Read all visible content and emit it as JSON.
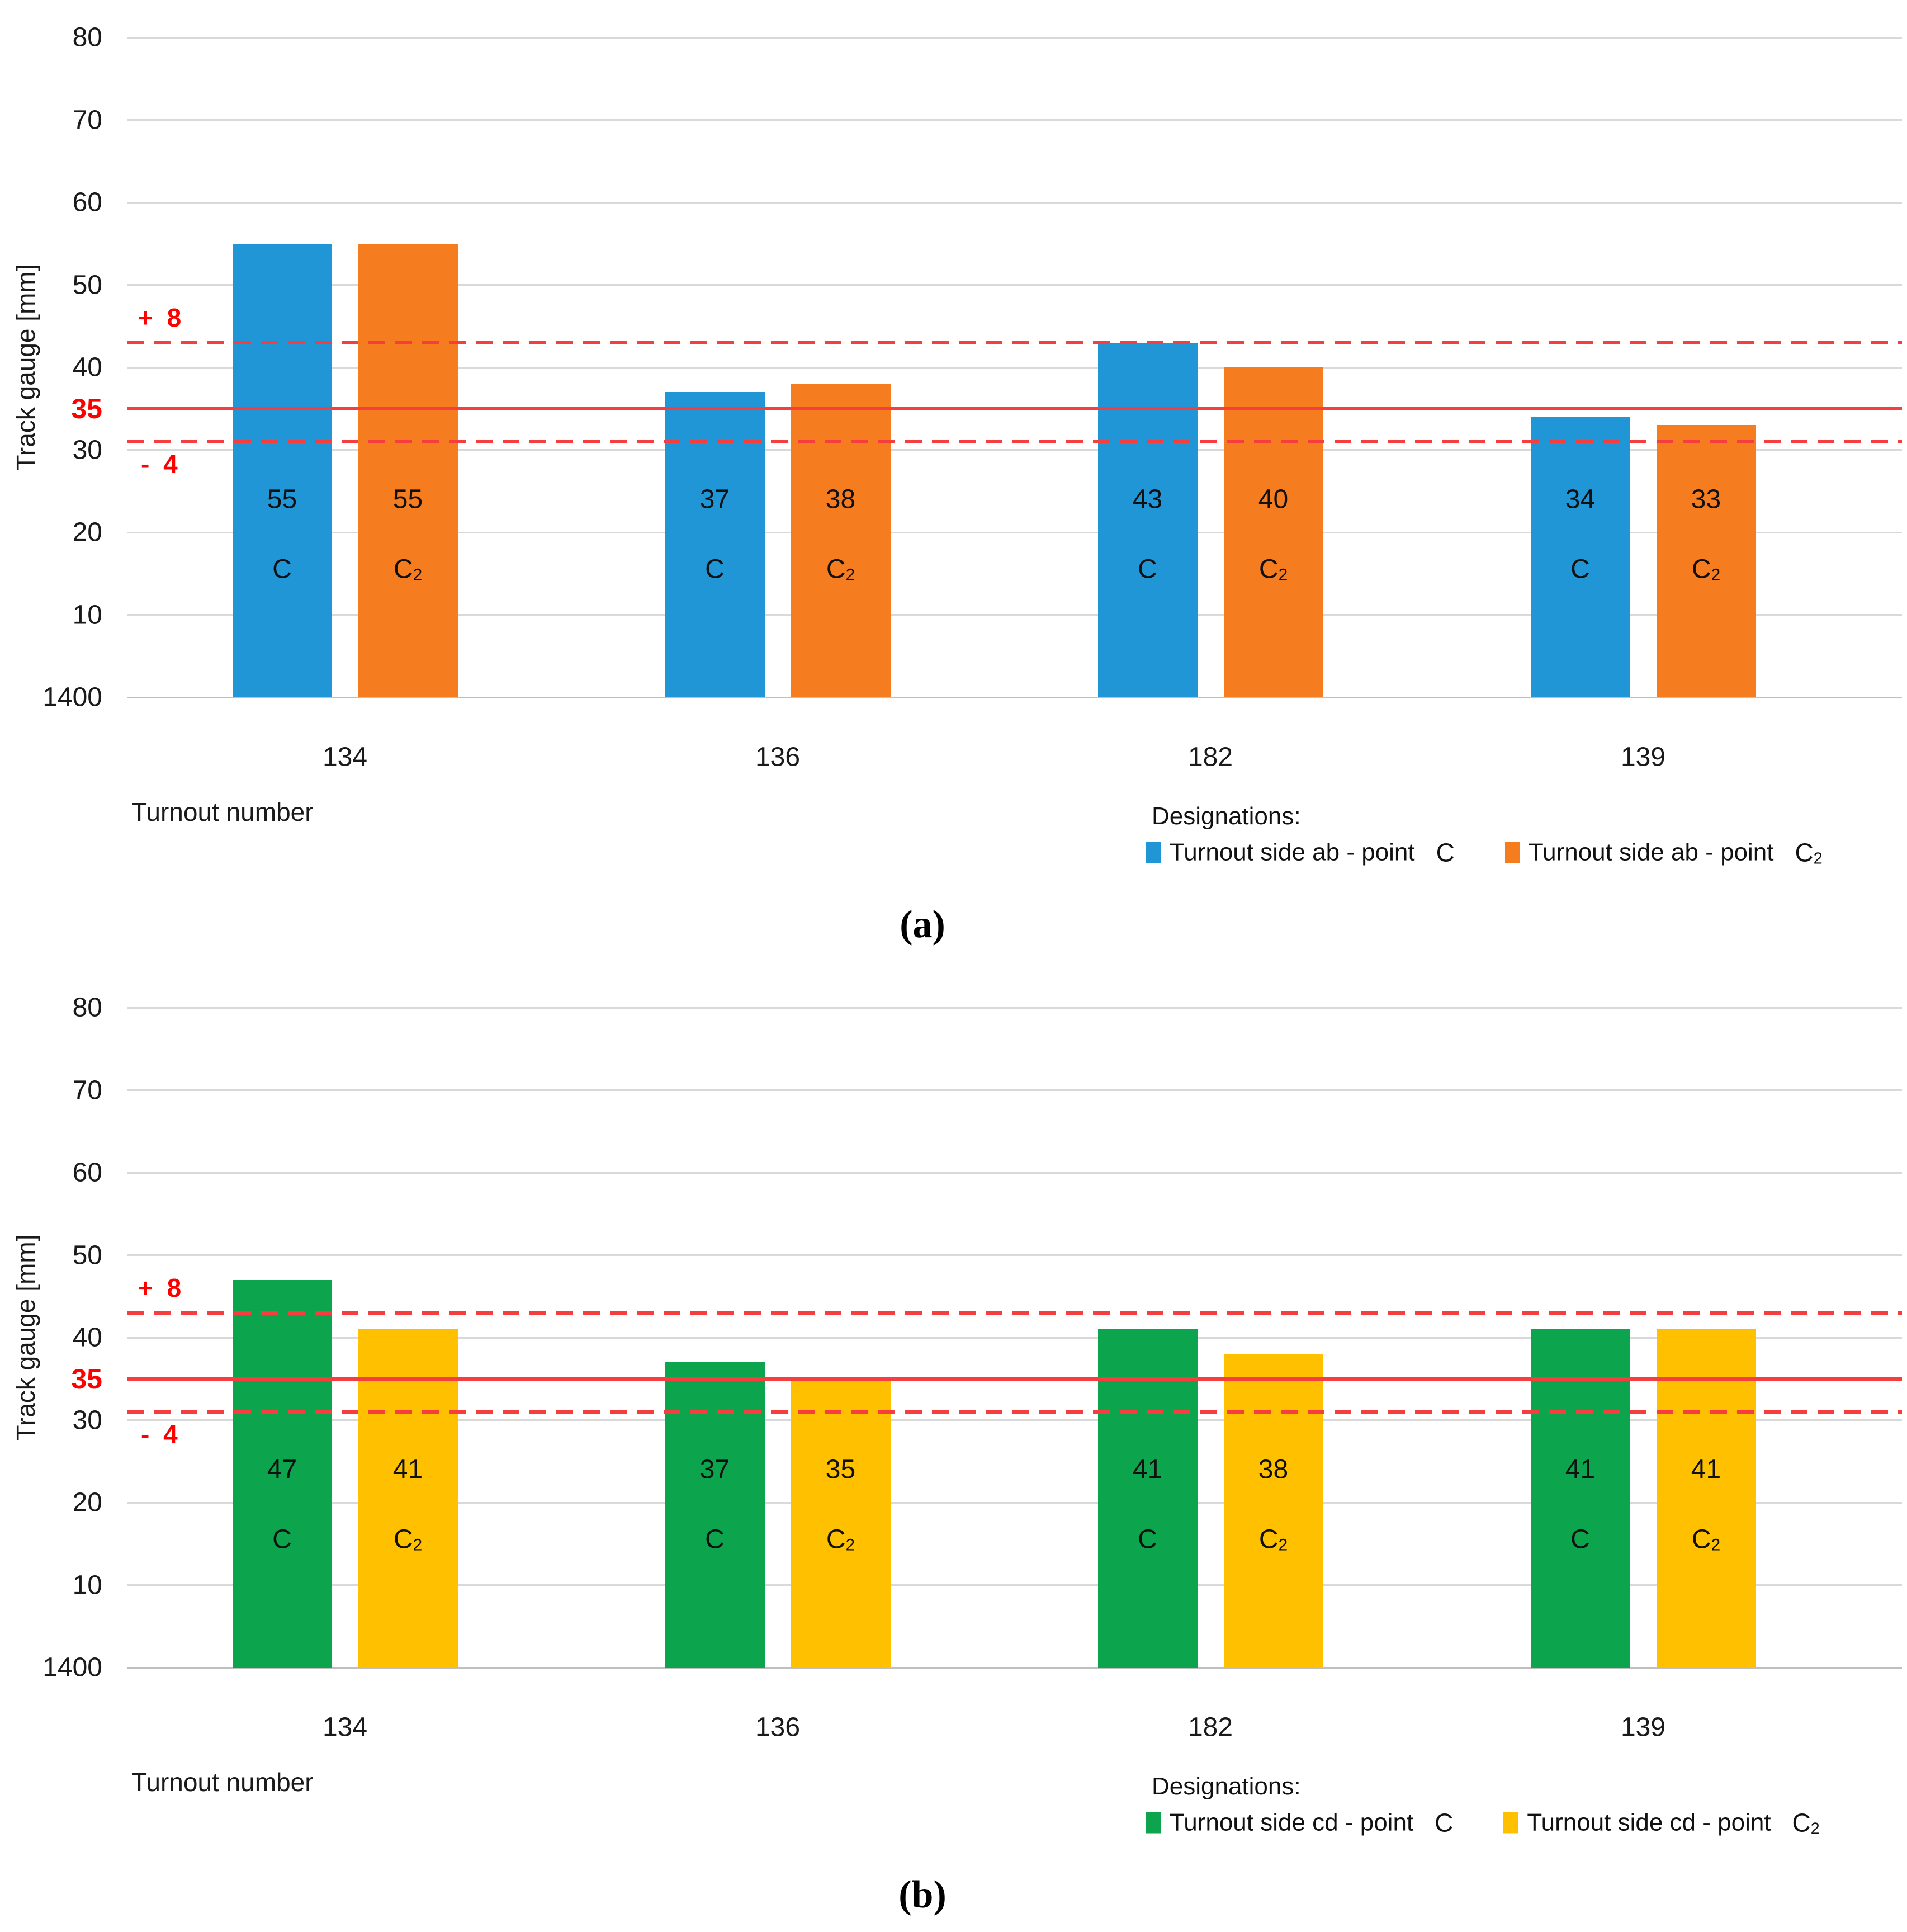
{
  "figure": {
    "description": "Track gauge measurements at turnouts, two panels",
    "accent_colors": {
      "blue": "#2196d6",
      "orange": "#f57c1f",
      "green": "#0ca44c",
      "yellow": "#ffc000",
      "reference_red": "#f63e3e",
      "gridline_gray": "#d9d9d9"
    }
  },
  "chart_data": [
    {
      "type": "bar",
      "panel": "(a)",
      "xlabel": "Turnout number",
      "ylabel": "Track gauge [mm]",
      "categories": [
        "134",
        "136",
        "182",
        "139"
      ],
      "series": [
        {
          "name": "Turnout side ab - point C",
          "point_label": "C",
          "color": "#2196d6",
          "values": [
            55,
            37,
            43,
            34
          ]
        },
        {
          "name": "Turnout side ab - point C₂",
          "point_label": "C₂",
          "color": "#f57c1f",
          "values": [
            55,
            38,
            40,
            33
          ]
        }
      ],
      "ylim": [
        0,
        80
      ],
      "y_ticks": [
        80,
        70,
        60,
        50,
        40,
        30,
        20,
        10
      ],
      "y_baseline_label": "1400",
      "grid": true,
      "reference_lines": {
        "target": {
          "value": 35,
          "label": "35",
          "style": "solid"
        },
        "upper": {
          "value": 43,
          "label": "+ 8",
          "style": "dashed"
        },
        "lower": {
          "value": 31,
          "label": "- 4",
          "style": "dashed"
        }
      },
      "legend": {
        "title": "Designations:",
        "position": "bottom-right",
        "entries": [
          {
            "text": "Turnout side ab - point",
            "point": "C"
          },
          {
            "text": "Turnout side ab - point",
            "point": "C₂"
          }
        ]
      }
    },
    {
      "type": "bar",
      "panel": "(b)",
      "xlabel": "Turnout number",
      "ylabel": "Track gauge [mm]",
      "categories": [
        "134",
        "136",
        "182",
        "139"
      ],
      "series": [
        {
          "name": "Turnout side cd - point C",
          "point_label": "C",
          "color": "#0ca44c",
          "values": [
            47,
            37,
            41,
            41
          ]
        },
        {
          "name": "Turnout side cd - point C₂",
          "point_label": "C₂",
          "color": "#ffc000",
          "values": [
            41,
            35,
            38,
            41
          ]
        }
      ],
      "ylim": [
        0,
        80
      ],
      "y_ticks": [
        80,
        70,
        60,
        50,
        40,
        30,
        20,
        10
      ],
      "y_baseline_label": "1400",
      "grid": true,
      "reference_lines": {
        "target": {
          "value": 35,
          "label": "35",
          "style": "solid"
        },
        "upper": {
          "value": 43,
          "label": "+ 8",
          "style": "dashed"
        },
        "lower": {
          "value": 31,
          "label": "- 4",
          "style": "dashed"
        }
      },
      "legend": {
        "title": "Designations:",
        "position": "bottom-right",
        "entries": [
          {
            "text": "Turnout side cd - point",
            "point": "C"
          },
          {
            "text": "Turnout side cd - point",
            "point": "C₂"
          }
        ]
      }
    }
  ]
}
